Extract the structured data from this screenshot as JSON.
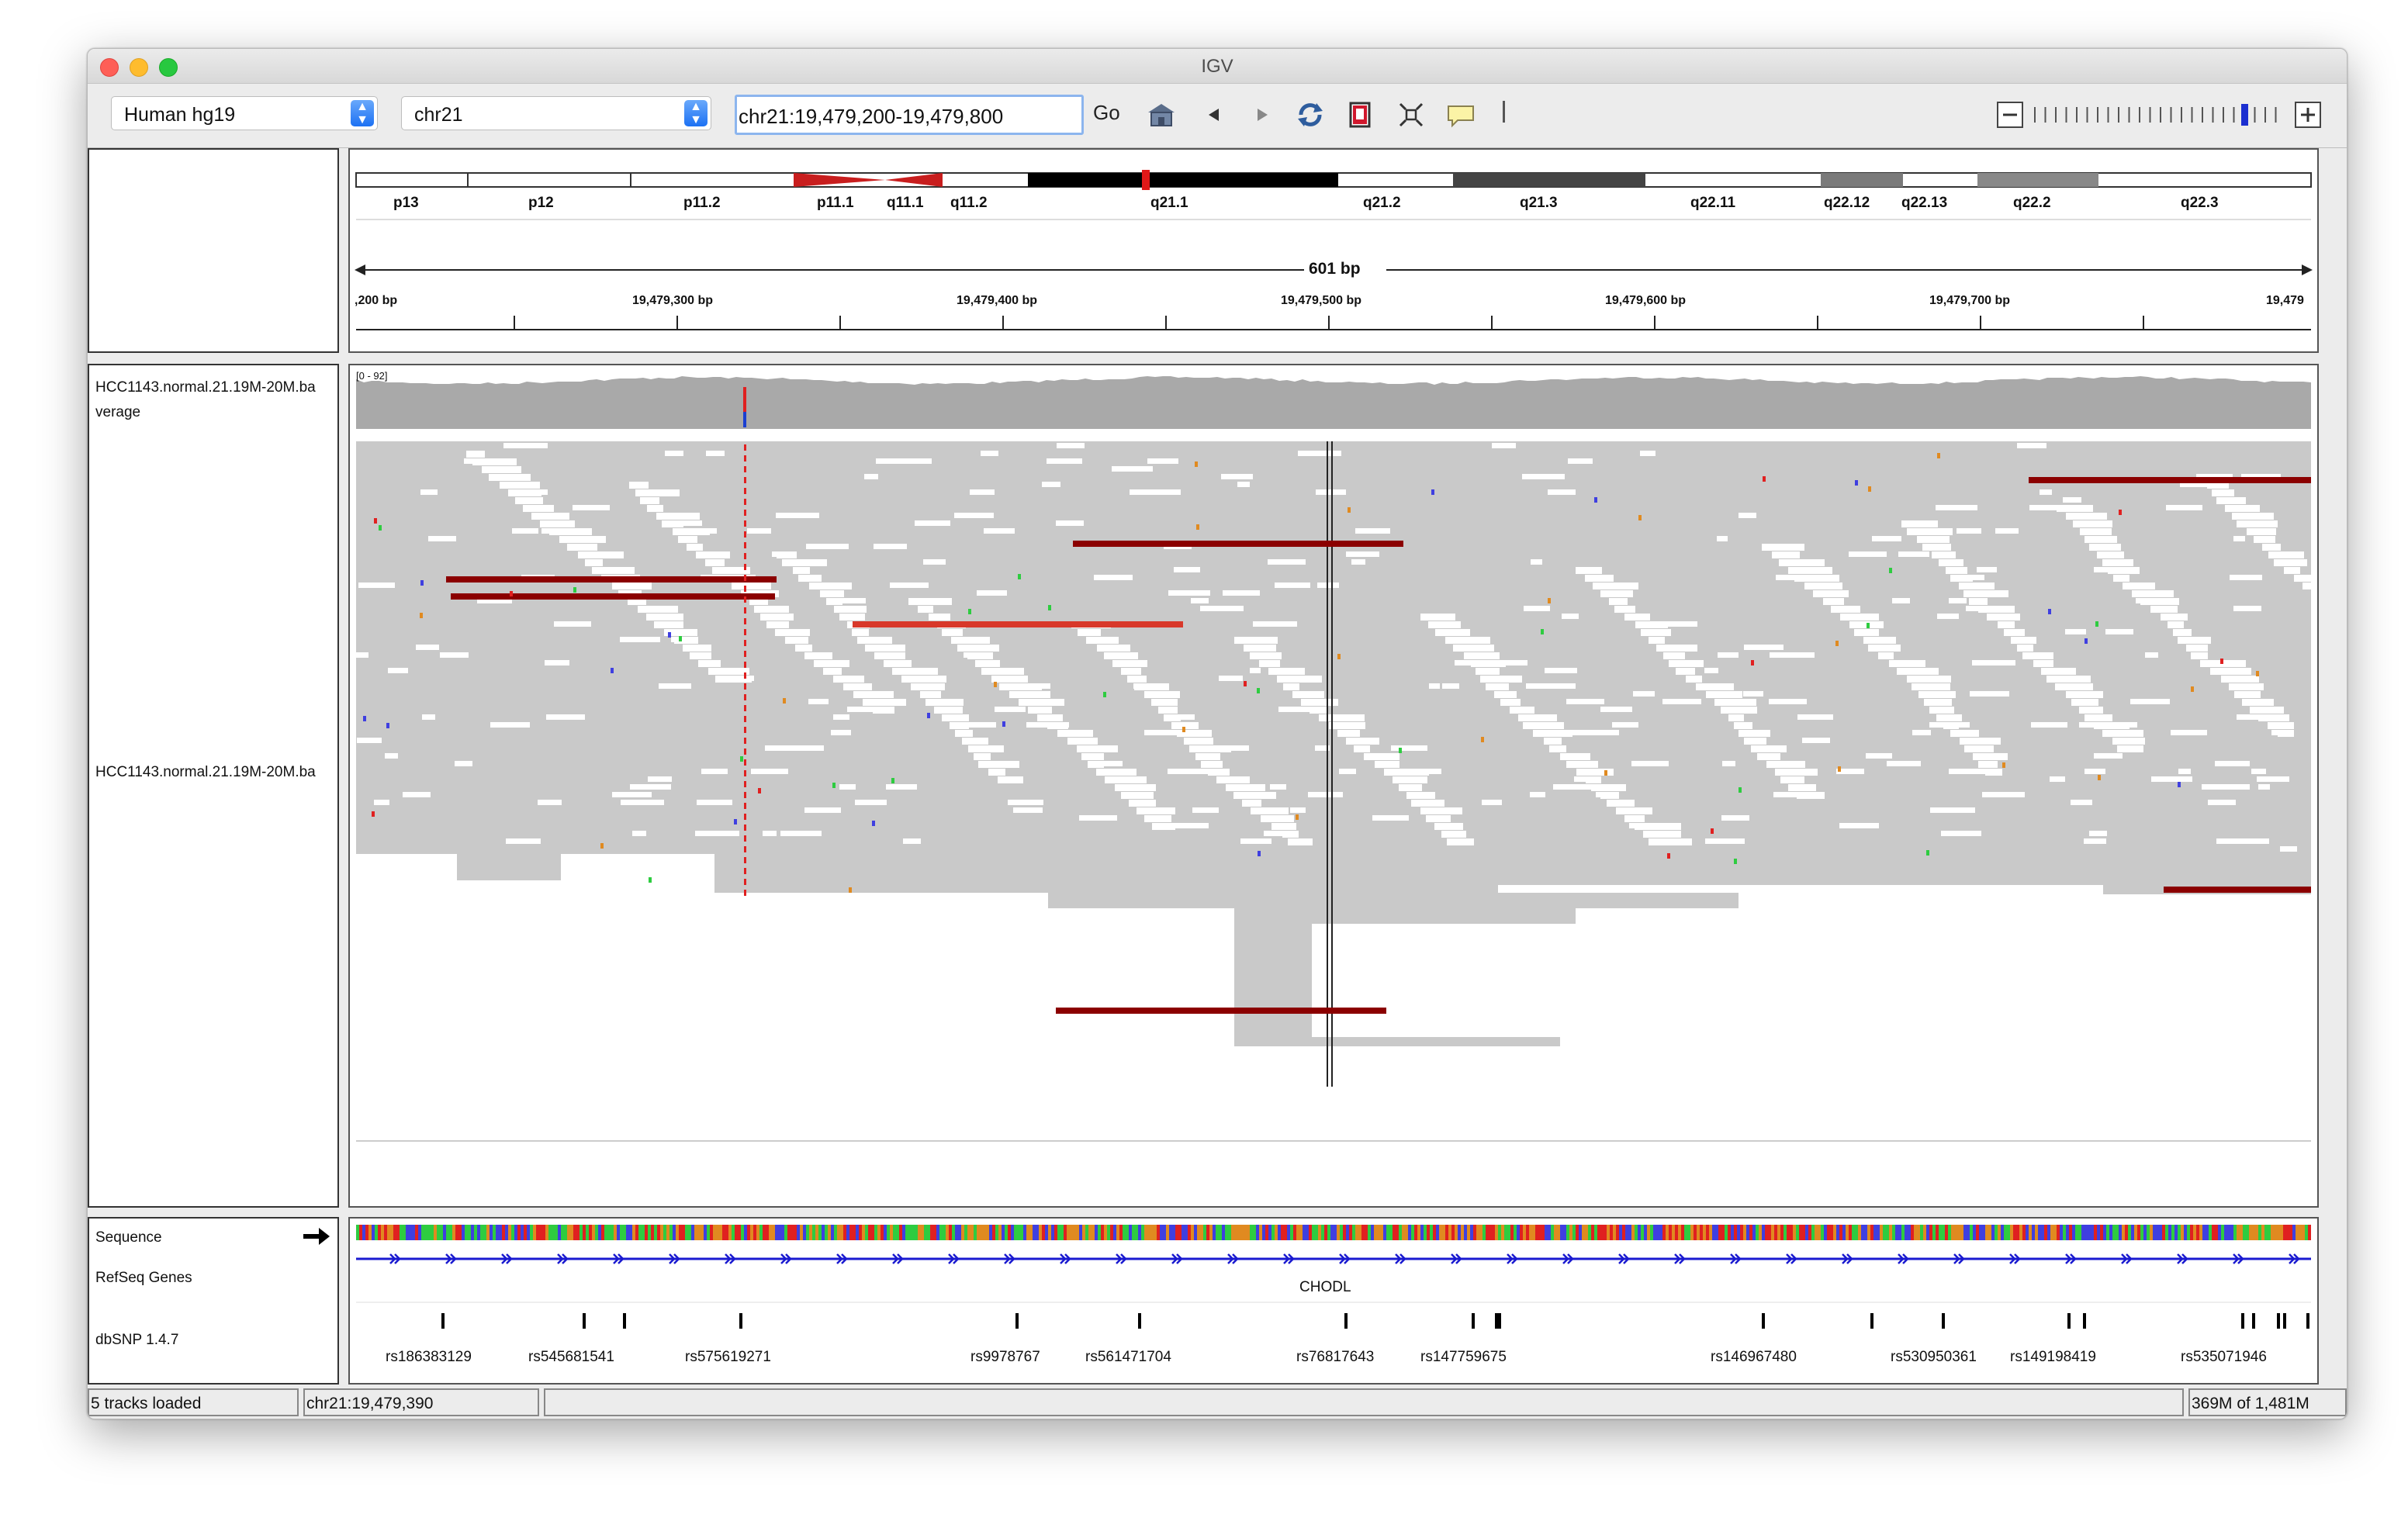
{
  "window": {
    "title": "IGV"
  },
  "toolbar": {
    "genome": "Human hg19",
    "chromosome": "chr21",
    "locus": "chr21:19,479,200-19,479,800",
    "go_label": "Go",
    "icons": [
      "home-icon",
      "back-icon",
      "forward-icon",
      "refresh-icon",
      "roi-icon",
      "resize-icon",
      "popup-text-icon",
      "divider"
    ]
  },
  "ideogram": {
    "bands": [
      "p13",
      "p12",
      "p11.2",
      "p11.1",
      "q11.1",
      "q11.2",
      "q21.1",
      "q21.2",
      "q21.3",
      "q22.11",
      "q22.12",
      "q22.13",
      "q22.2",
      "q22.3"
    ],
    "span_label": "601 bp",
    "ruler_ticks": [
      ",200 bp",
      "19,479,300 bp",
      "19,479,400 bp",
      "19,479,500 bp",
      "19,479,600 bp",
      "19,479,700 bp",
      "19,479"
    ]
  },
  "tracks": {
    "coverage_name_line1": "HCC1143.normal.21.19M-20M.ba",
    "coverage_name_line2": "verage",
    "coverage_range": "[0 - 92]",
    "alignment_name": "HCC1143.normal.21.19M-20M.ba",
    "sequence_name": "Sequence",
    "refseq_name": "RefSeq Genes",
    "dbsnp_name": "dbSNP 1.4.7",
    "gene_label": "CHODL",
    "snp_labels": [
      "rs186383129",
      "rs545681541",
      "rs575619271",
      "rs9978767",
      "rs561471704",
      "rs76817643",
      "rs147759675",
      "rs146967480",
      "rs530950361",
      "rs149198419",
      "rs535071946"
    ]
  },
  "status": {
    "tracks_loaded": "5 tracks loaded",
    "position": "chr21:19,479,390",
    "middle": "",
    "memory": "369M of 1,481M"
  },
  "colors": {
    "accent": "#1c71f3",
    "mismatch_red": "#e02020",
    "read_gray": "#c8c8c8",
    "coverage_gray": "#a9a9a9",
    "deletion": "#8b0000"
  }
}
